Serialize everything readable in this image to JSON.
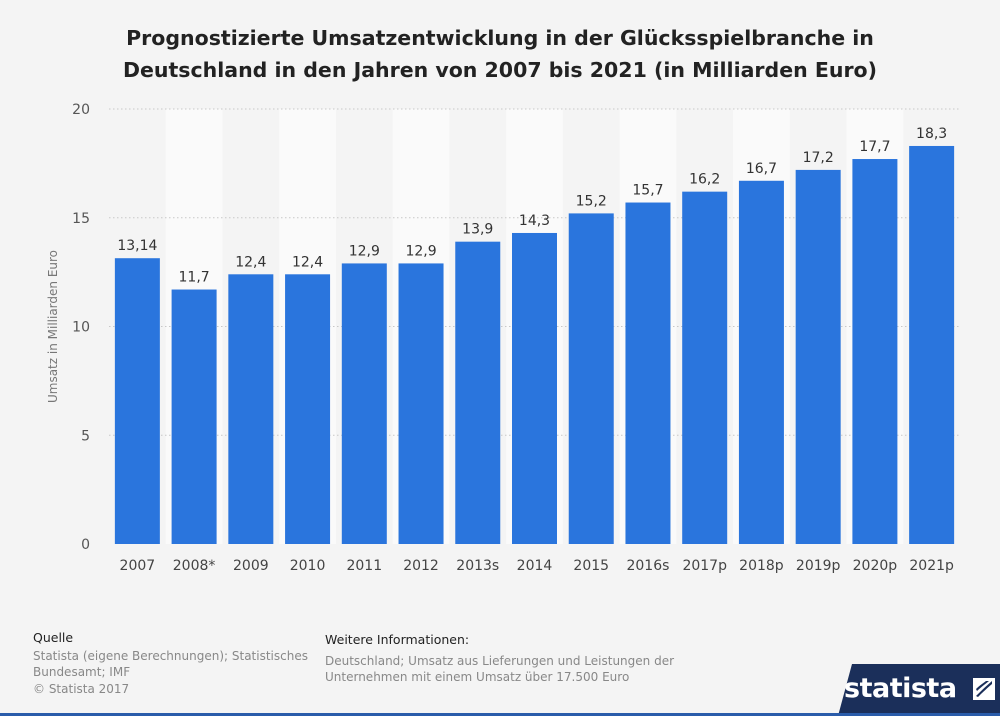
{
  "title_line1": "Prognostizierte Umsatzentwicklung in der Glücksspielbranche in",
  "title_line2": "Deutschland in den Jahren von 2007 bis 2021 (in Milliarden Euro)",
  "chart_data": {
    "type": "bar",
    "categories": [
      "2007",
      "2008*",
      "2009",
      "2010",
      "2011",
      "2012",
      "2013s",
      "2014",
      "2015",
      "2016s",
      "2017p",
      "2018p",
      "2019p",
      "2020p",
      "2021p"
    ],
    "values": [
      13.14,
      11.7,
      12.4,
      12.4,
      12.9,
      12.9,
      13.9,
      14.3,
      15.2,
      15.7,
      16.2,
      16.7,
      17.2,
      17.7,
      18.3
    ],
    "value_labels": [
      "13,14",
      "11,7",
      "12,4",
      "12,4",
      "12,9",
      "12,9",
      "13,9",
      "14,3",
      "15,2",
      "15,7",
      "16,2",
      "16,7",
      "17,2",
      "17,7",
      "18,3"
    ],
    "ylabel": "Umsatz in Milliarden Euro",
    "ylim": [
      0,
      20
    ],
    "yticks": [
      0,
      5,
      10,
      15,
      20
    ],
    "ytick_labels": [
      "0",
      "5",
      "10",
      "15",
      "20"
    ],
    "grid": true,
    "bar_color": "#2a75dd"
  },
  "footer": {
    "source_heading": "Quelle",
    "source_line1": "Statista (eigene Berechnungen); Statistisches",
    "source_line2": "Bundesamt; IMF",
    "copyright": "© Statista 2017",
    "info_heading": "Weitere Informationen:",
    "info_line1": "Deutschland; Umsatz aus Lieferungen und Leistungen der",
    "info_line2": "Unternehmen mit einem Umsatz über 17.500 Euro"
  },
  "logo_text": "statista",
  "logo_color": "#1b2f5a"
}
